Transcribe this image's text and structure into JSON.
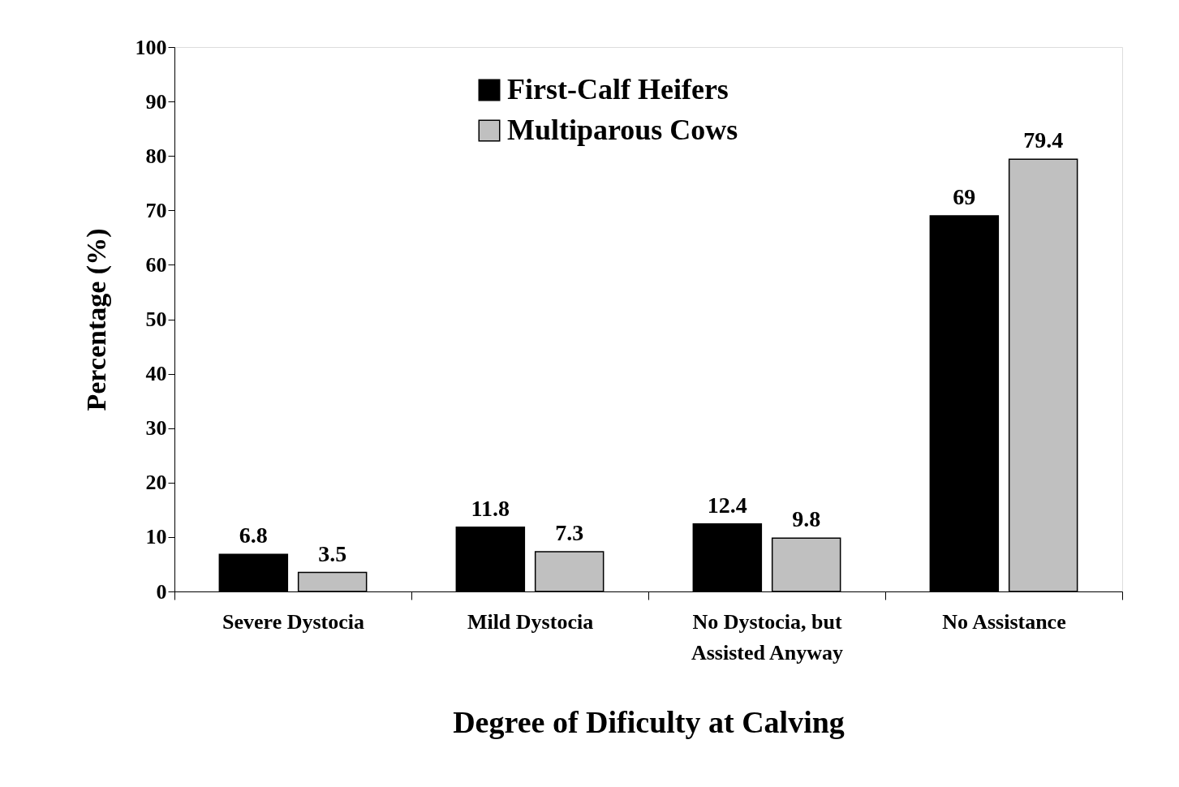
{
  "chart_data": {
    "type": "bar",
    "xlabel": "Degree of Dificulty at Calving",
    "ylabel": "Percentage (%)",
    "categories": [
      "Severe Dystocia",
      "Mild Dystocia",
      "No Dystocia, but\nAssisted Anyway",
      "No Assistance"
    ],
    "series": [
      {
        "name": "First-Calf Heifers",
        "color": "#000000",
        "values": [
          6.8,
          11.8,
          12.4,
          69
        ]
      },
      {
        "name": "Multiparous Cows",
        "color": "#c0c0c0",
        "values": [
          3.5,
          7.3,
          9.8,
          79.4
        ]
      }
    ],
    "ylim": [
      0,
      100
    ],
    "yticks": [
      0,
      10,
      20,
      30,
      40,
      50,
      60,
      70,
      80,
      90,
      100
    ],
    "grid": false,
    "legend": "top",
    "data_labels": true
  }
}
